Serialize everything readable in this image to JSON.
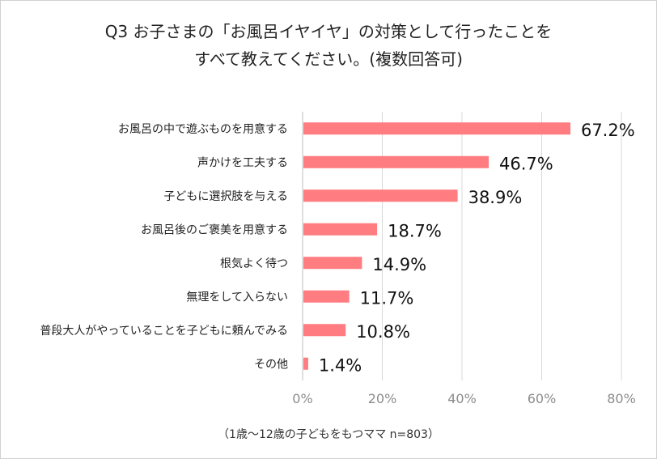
{
  "chart_data": {
    "type": "bar",
    "orientation": "horizontal",
    "title_lines": [
      "Q3 お子さまの「お風呂イヤイヤ」の対策として行ったことを",
      "すべて教えてください。(複数回答可)"
    ],
    "categories": [
      "お風呂の中で遊ぶものを用意する",
      "声かけを工夫する",
      "子どもに選択肢を与える",
      "お風呂後のご褒美を用意する",
      "根気よく待つ",
      "無理をして入らない",
      "普段大人がやっていることを子どもに頼んでみる",
      "その他"
    ],
    "values": [
      67.2,
      46.7,
      38.9,
      18.7,
      14.9,
      11.7,
      10.8,
      1.4
    ],
    "value_labels": [
      "67.2%",
      "46.7%",
      "38.9%",
      "18.7%",
      "14.9%",
      "11.7%",
      "10.8%",
      "1.4%"
    ],
    "xlim": [
      0,
      80
    ],
    "x_ticks": [
      0,
      20,
      40,
      60,
      80
    ],
    "x_tick_labels": [
      "0%",
      "20%",
      "40%",
      "60%",
      "80%"
    ],
    "grid": true,
    "bar_color": "#ff7c80",
    "footnote": "（1歳～12歳の子どもをもつママ  n=803）"
  }
}
